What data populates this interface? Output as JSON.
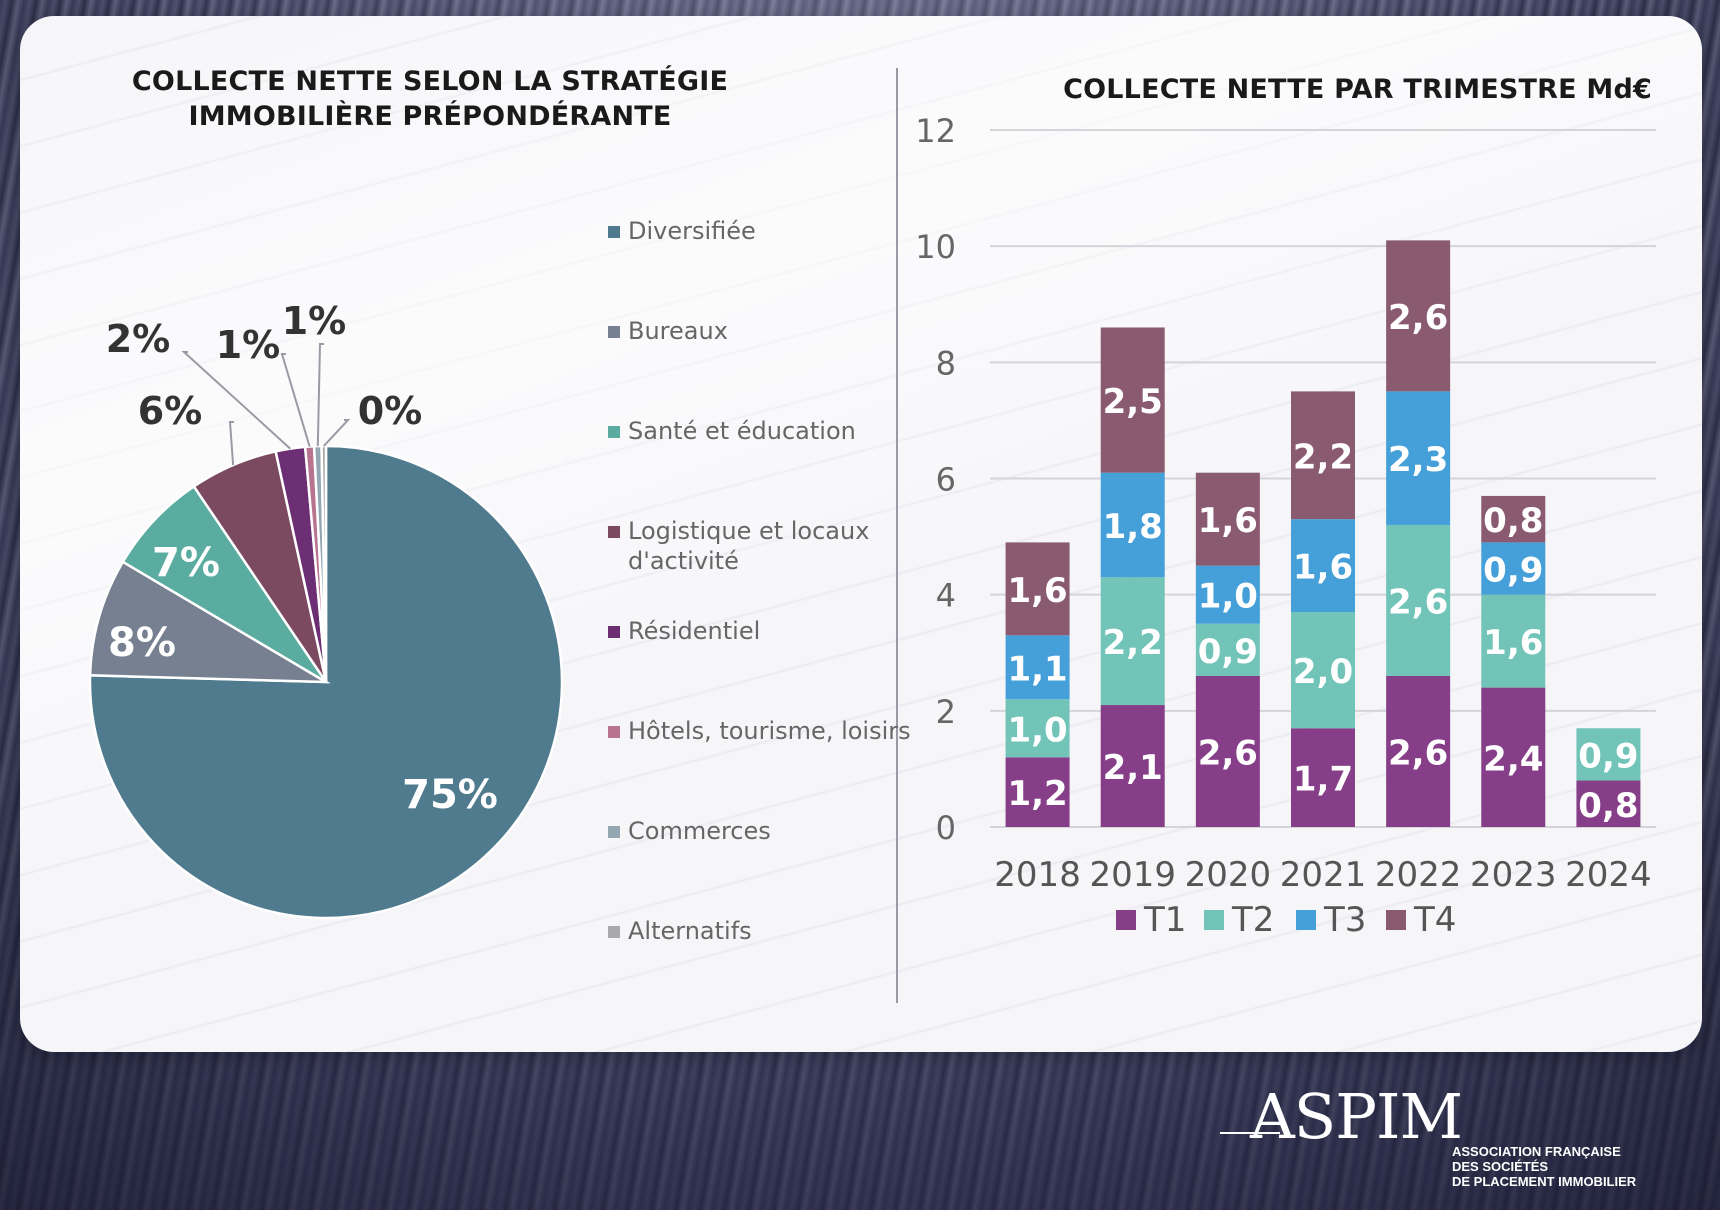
{
  "left_chart": {
    "title": "COLLECTE NETTE SELON LA STRATÉGIE IMMOBILIÈRE PRÉPONDÉRANTE"
  },
  "right_chart": {
    "title": "COLLECTE NETTE PAR TRIMESTRE Md€"
  },
  "chart_data": [
    {
      "type": "pie",
      "title": "COLLECTE NETTE SELON LA STRATÉGIE IMMOBILIÈRE PRÉPONDÉRANTE",
      "legend_position": "right",
      "slices": [
        {
          "label": "Diversifiée",
          "value": 75,
          "display": "75%",
          "color": "#507b8f"
        },
        {
          "label": "Bureaux",
          "value": 8,
          "display": "8%",
          "color": "#768090"
        },
        {
          "label": "Santé et éducation",
          "value": 7,
          "display": "7%",
          "color": "#5aaba0"
        },
        {
          "label": "Logistique et locaux d'activité",
          "value": 6,
          "display": "6%",
          "color": "#7b4a60"
        },
        {
          "label": "Résidentiel",
          "value": 2,
          "display": "2%",
          "color": "#6c2f73"
        },
        {
          "label": "Hôtels, tourisme, loisirs",
          "value": 0.6,
          "display": "1%",
          "color": "#b8748e"
        },
        {
          "label": "Commerces",
          "value": 0.5,
          "display": "1%",
          "color": "#93a6b2"
        },
        {
          "label": "Alternatifs",
          "value": 0.3,
          "display": "0%",
          "color": "#a9a9ab"
        }
      ]
    },
    {
      "type": "bar",
      "stacked": true,
      "title": "COLLECTE NETTE PAR TRIMESTRE Md€",
      "categories": [
        "2018",
        "2019",
        "2020",
        "2021",
        "2022",
        "2023",
        "2024"
      ],
      "ylim": [
        0,
        12
      ],
      "yticks": [
        "0",
        "2",
        "4",
        "6",
        "8",
        "10",
        "12"
      ],
      "grid": true,
      "legend_position": "bottom",
      "series": [
        {
          "name": "T1",
          "color": "#853e87",
          "values": [
            1.2,
            2.1,
            2.6,
            1.7,
            2.6,
            2.4,
            0.8
          ],
          "labels": [
            "1,2",
            "2,1",
            "2,6",
            "1,7",
            "2,6",
            "2,4",
            "0,8"
          ]
        },
        {
          "name": "T2",
          "color": "#72c4b8",
          "values": [
            1.0,
            2.2,
            0.9,
            2.0,
            2.6,
            1.6,
            0.9
          ],
          "labels": [
            "1,0",
            "2,2",
            "0,9",
            "2,0",
            "2,6",
            "1,6",
            "0,9"
          ]
        },
        {
          "name": "T3",
          "color": "#459fd8",
          "values": [
            1.1,
            1.8,
            1.0,
            1.6,
            2.3,
            0.9,
            null
          ],
          "labels": [
            "1,1",
            "1,8",
            "1,0",
            "1,6",
            "2,3",
            "0,9",
            ""
          ]
        },
        {
          "name": "T4",
          "color": "#8a5b70",
          "values": [
            1.6,
            2.5,
            1.6,
            2.2,
            2.6,
            0.8,
            null
          ],
          "labels": [
            "1,6",
            "2,5",
            "1,6",
            "2,2",
            "2,6",
            "0,8",
            ""
          ]
        }
      ]
    }
  ],
  "logo": {
    "name": "ASPIM",
    "line1": "ASSOCIATION FRANÇAISE",
    "line2": "DES SOCIÉTÉS",
    "line3": "DE PLACEMENT IMMOBILIER"
  }
}
